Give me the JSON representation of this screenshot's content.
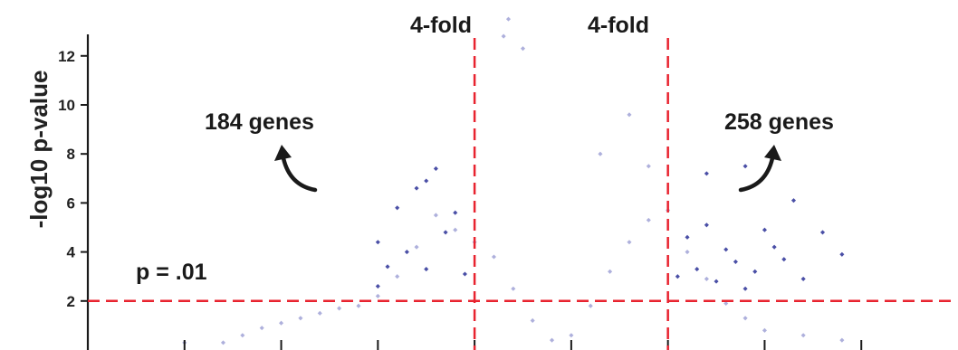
{
  "chart_data": {
    "type": "scatter",
    "title": "",
    "xlabel": "",
    "ylabel": "-log10 p-value",
    "xlim": [
      -4,
      5
    ],
    "ylim": [
      0,
      13.8
    ],
    "y_ticks": [
      2,
      4,
      6,
      8,
      10,
      12
    ],
    "x_ticks": [
      -3,
      -2,
      -1,
      0,
      1,
      2,
      3,
      4
    ],
    "x_tick_labels_shown": false,
    "grid": false,
    "thresholds": {
      "fold_left": 0,
      "fold_right": 2,
      "fold_label": "4-fold",
      "pvalue_y": 2.0,
      "pvalue_label": "p = .01"
    },
    "annotations": {
      "down_count": "184 genes",
      "up_count": "258 genes"
    },
    "colors": {
      "significant": "#4a4fa6",
      "background": "#aeb0dc",
      "threshold_line": "#e8232f",
      "axis": "#1a1a1a"
    },
    "series": [
      {
        "values": "not-significant points (light)",
        "x": [
          -2.6,
          -2.4,
          -2.2,
          -2.0,
          -1.8,
          -1.6,
          -1.4,
          -1.2,
          -1.0,
          -0.8,
          -0.6,
          -0.4,
          -0.2,
          0.0,
          0.2,
          0.4,
          0.6,
          0.8,
          1.0,
          1.2,
          1.4,
          1.6,
          1.8,
          2.0,
          2.2,
          2.4,
          2.6,
          2.8,
          3.0,
          3.4,
          -3.0,
          3.8,
          0.3,
          0.5,
          1.3,
          1.6,
          1.8,
          0.35
        ],
        "y": [
          0.3,
          0.6,
          0.9,
          1.1,
          1.3,
          1.5,
          1.7,
          1.8,
          2.2,
          3.0,
          4.2,
          5.5,
          4.9,
          4.4,
          3.8,
          2.5,
          1.2,
          0.4,
          0.6,
          1.8,
          3.2,
          4.4,
          5.3,
          5.7,
          4.0,
          2.9,
          1.9,
          1.3,
          0.8,
          0.6,
          0.3,
          0.4,
          12.8,
          12.3,
          8.0,
          9.6,
          7.5,
          13.5
        ]
      },
      {
        "values": "significant points (dark)",
        "x": [
          -1.0,
          -0.9,
          -0.8,
          -0.7,
          -0.6,
          -0.5,
          -0.4,
          -0.3,
          -0.2,
          -0.1,
          2.1,
          2.2,
          2.3,
          2.4,
          2.5,
          2.6,
          2.7,
          2.8,
          2.9,
          3.0,
          3.2,
          3.4,
          3.6,
          3.8,
          -1.0,
          -0.5,
          2.4,
          2.8,
          3.1,
          3.3
        ],
        "y": [
          2.6,
          3.4,
          5.8,
          4.0,
          6.6,
          3.3,
          7.4,
          4.8,
          5.6,
          3.1,
          3.0,
          4.6,
          3.3,
          7.2,
          2.8,
          4.1,
          3.6,
          7.5,
          3.2,
          4.9,
          3.7,
          2.9,
          4.8,
          3.9,
          4.4,
          6.9,
          5.1,
          2.5,
          4.2,
          6.1
        ]
      }
    ]
  }
}
